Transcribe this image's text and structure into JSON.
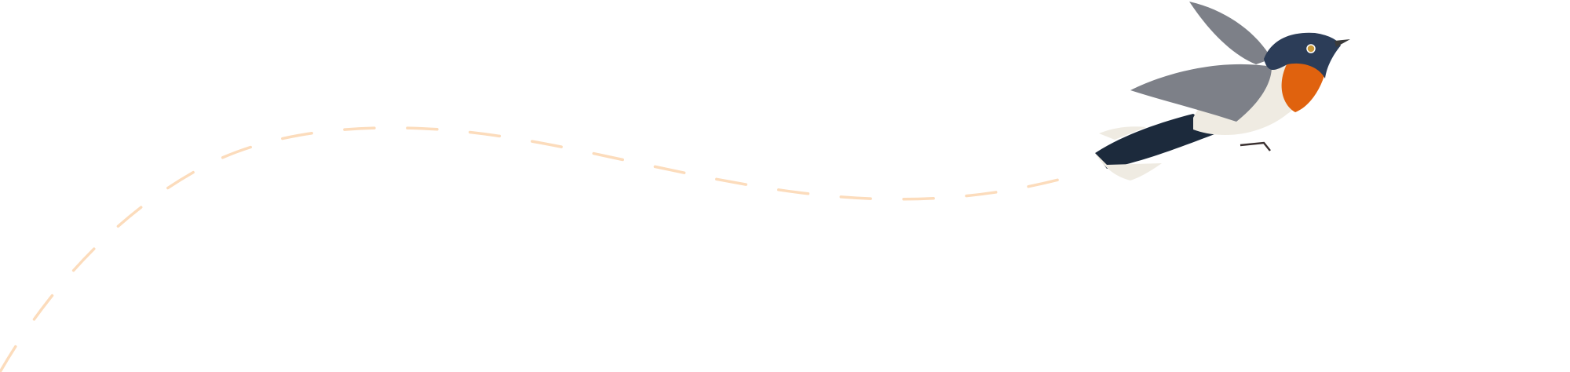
{
  "illustration": {
    "subject": "flying-bird",
    "path_style": "dashed",
    "colors": {
      "background": "#ffffff",
      "dash": "#fcdcbc",
      "bird_head": "#2c3d58",
      "bird_throat": "#e0620e",
      "bird_belly": "#efebe2",
      "bird_wing": "#7d8088",
      "bird_tail": "#1c2a3c"
    }
  }
}
